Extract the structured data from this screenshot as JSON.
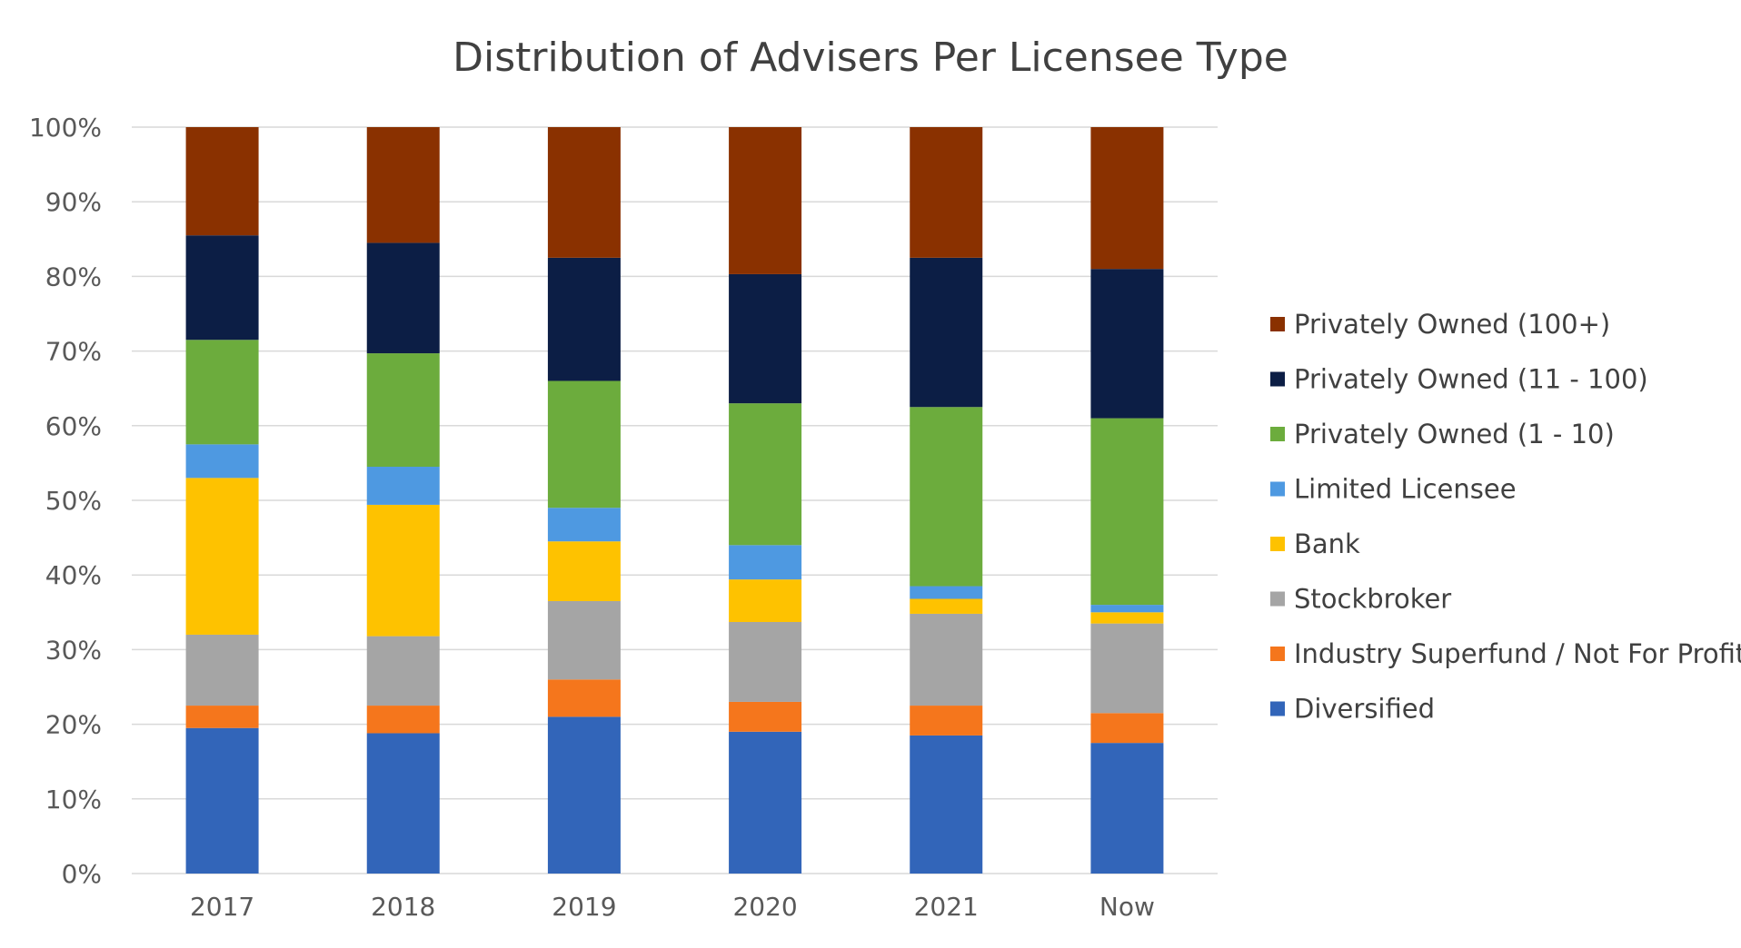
{
  "chart_data": {
    "type": "bar",
    "stacked": true,
    "percent_scale": true,
    "title": "Distribution of Advisers Per Licensee Type",
    "categories": [
      "2017",
      "2018",
      "2019",
      "2020",
      "2021",
      "Now"
    ],
    "y_ticks": [
      "0%",
      "10%",
      "20%",
      "30%",
      "40%",
      "50%",
      "60%",
      "70%",
      "80%",
      "90%",
      "100%"
    ],
    "ylim": [
      0,
      100
    ],
    "grid": true,
    "legend_position": "right",
    "series": [
      {
        "name": "Diversified",
        "color": "#3265b9",
        "values": [
          19.5,
          18.8,
          21.0,
          19.0,
          18.5,
          17.5
        ]
      },
      {
        "name": "Industry Superfund / Not For Profit",
        "color": "#f5761c",
        "values": [
          3.0,
          3.7,
          5.0,
          4.0,
          4.0,
          4.0
        ]
      },
      {
        "name": "Stockbroker",
        "color": "#a5a5a5",
        "values": [
          9.5,
          9.3,
          10.5,
          10.7,
          12.3,
          12.0
        ]
      },
      {
        "name": "Bank",
        "color": "#fec200",
        "values": [
          21.0,
          17.6,
          8.0,
          5.7,
          2.0,
          1.5
        ]
      },
      {
        "name": "Limited Licensee",
        "color": "#4e99e1",
        "values": [
          4.5,
          5.1,
          4.5,
          4.6,
          1.7,
          1.0
        ]
      },
      {
        "name": "Privately Owned (1 - 10)",
        "color": "#6cac3d",
        "values": [
          14.0,
          15.2,
          17.0,
          19.0,
          24.0,
          25.0
        ]
      },
      {
        "name": "Privately Owned (11 - 100)",
        "color": "#0c1e45",
        "values": [
          14.0,
          14.8,
          16.5,
          17.3,
          20.0,
          20.0
        ]
      },
      {
        "name": "Privately Owned (100+)",
        "color": "#8a3100",
        "values": [
          14.5,
          15.5,
          17.5,
          19.7,
          17.5,
          19.0
        ]
      }
    ]
  }
}
